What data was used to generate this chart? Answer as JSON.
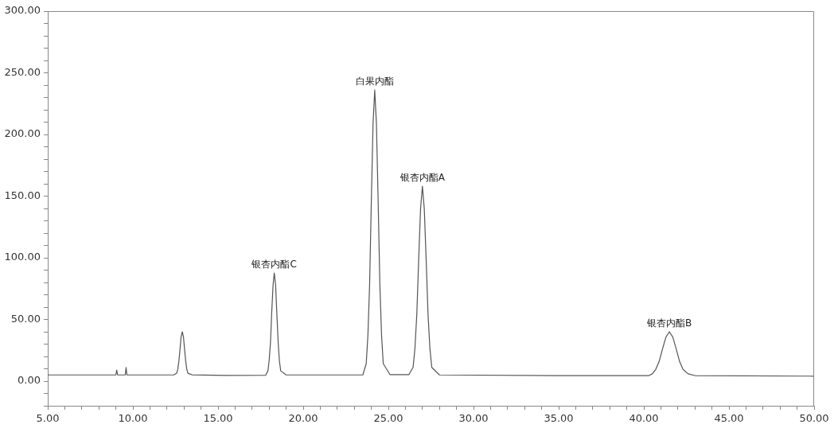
{
  "chart_data": {
    "type": "line",
    "grid": false,
    "marker": "none",
    "line_style": "solid",
    "xlim": [
      5,
      50
    ],
    "ylim": [
      -20,
      300
    ],
    "xticks": [
      {
        "value": 5,
        "label": "5.00"
      },
      {
        "value": 6,
        "label": null
      },
      {
        "value": 7,
        "label": null
      },
      {
        "value": 8,
        "label": null
      },
      {
        "value": 9,
        "label": null
      },
      {
        "value": 10,
        "label": "10.00"
      },
      {
        "value": 11,
        "label": null
      },
      {
        "value": 12,
        "label": null
      },
      {
        "value": 13,
        "label": null
      },
      {
        "value": 14,
        "label": null
      },
      {
        "value": 15,
        "label": "15.00"
      },
      {
        "value": 16,
        "label": null
      },
      {
        "value": 17,
        "label": null
      },
      {
        "value": 18,
        "label": null
      },
      {
        "value": 19,
        "label": null
      },
      {
        "value": 20,
        "label": "20.00"
      },
      {
        "value": 21,
        "label": null
      },
      {
        "value": 22,
        "label": null
      },
      {
        "value": 23,
        "label": null
      },
      {
        "value": 24,
        "label": null
      },
      {
        "value": 25,
        "label": "25.00"
      },
      {
        "value": 26,
        "label": null
      },
      {
        "value": 27,
        "label": null
      },
      {
        "value": 28,
        "label": null
      },
      {
        "value": 29,
        "label": null
      },
      {
        "value": 30,
        "label": "30.00"
      },
      {
        "value": 31,
        "label": null
      },
      {
        "value": 32,
        "label": null
      },
      {
        "value": 33,
        "label": null
      },
      {
        "value": 34,
        "label": null
      },
      {
        "value": 35,
        "label": "35.00"
      },
      {
        "value": 36,
        "label": null
      },
      {
        "value": 37,
        "label": null
      },
      {
        "value": 38,
        "label": null
      },
      {
        "value": 39,
        "label": null
      },
      {
        "value": 40,
        "label": "40.00"
      },
      {
        "value": 41,
        "label": null
      },
      {
        "value": 42,
        "label": null
      },
      {
        "value": 43,
        "label": null
      },
      {
        "value": 44,
        "label": null
      },
      {
        "value": 45,
        "label": "45.00"
      },
      {
        "value": 46,
        "label": null
      },
      {
        "value": 47,
        "label": null
      },
      {
        "value": 48,
        "label": null
      },
      {
        "value": 49,
        "label": null
      },
      {
        "value": 50,
        "label": "50.00"
      }
    ],
    "yticks": [
      {
        "value": -20,
        "label": null
      },
      {
        "value": -10,
        "label": null
      },
      {
        "value": 0,
        "label": "0.00"
      },
      {
        "value": 10,
        "label": null
      },
      {
        "value": 20,
        "label": null
      },
      {
        "value": 30,
        "label": null
      },
      {
        "value": 40,
        "label": null
      },
      {
        "value": 50,
        "label": "50.00"
      },
      {
        "value": 60,
        "label": null
      },
      {
        "value": 70,
        "label": null
      },
      {
        "value": 80,
        "label": null
      },
      {
        "value": 90,
        "label": null
      },
      {
        "value": 100,
        "label": "100.00"
      },
      {
        "value": 110,
        "label": null
      },
      {
        "value": 120,
        "label": null
      },
      {
        "value": 130,
        "label": null
      },
      {
        "value": 140,
        "label": null
      },
      {
        "value": 150,
        "label": "150.00"
      },
      {
        "value": 160,
        "label": null
      },
      {
        "value": 170,
        "label": null
      },
      {
        "value": 180,
        "label": null
      },
      {
        "value": 190,
        "label": null
      },
      {
        "value": 200,
        "label": "200.00"
      },
      {
        "value": 210,
        "label": null
      },
      {
        "value": 220,
        "label": null
      },
      {
        "value": 230,
        "label": null
      },
      {
        "value": 240,
        "label": null
      },
      {
        "value": 250,
        "label": "250.00"
      },
      {
        "value": 260,
        "label": null
      },
      {
        "value": 270,
        "label": null
      },
      {
        "value": 280,
        "label": null
      },
      {
        "value": 290,
        "label": null
      },
      {
        "value": 300,
        "label": "300.00"
      }
    ],
    "series": [
      {
        "color": "#555555",
        "x": [
          5,
          9.0,
          9.05,
          9.1,
          9.55,
          9.6,
          9.65,
          12.4,
          12.57,
          12.64,
          12.7,
          12.77,
          12.83,
          12.9,
          12.97,
          13.03,
          13.1,
          13.16,
          13.23,
          13.5,
          15.5,
          17.8,
          17.93,
          18.0,
          18.08,
          18.15,
          18.23,
          18.3,
          18.38,
          18.45,
          18.53,
          18.6,
          18.68,
          19,
          23.5,
          23.7,
          23.8,
          23.9,
          24.0,
          24.1,
          24.2,
          24.3,
          24.4,
          24.5,
          24.6,
          24.7,
          25.1,
          26.2,
          26.45,
          26.56,
          26.67,
          26.78,
          26.89,
          27.0,
          27.11,
          27.22,
          27.33,
          27.44,
          27.55,
          28,
          35,
          40.3,
          40.5,
          40.7,
          40.9,
          41.1,
          41.3,
          41.5,
          41.7,
          41.9,
          42.1,
          42.3,
          42.6,
          43,
          50
        ],
        "values": [
          5,
          5,
          9,
          5,
          5,
          11,
          5,
          5,
          6.4,
          9.9,
          16.2,
          26.4,
          35.8,
          40,
          35.8,
          26.4,
          16.2,
          9.9,
          6.4,
          5,
          4.6,
          4.8,
          8.3,
          16.6,
          31.5,
          55.4,
          77.8,
          87.7,
          77.8,
          55.4,
          31.5,
          16.6,
          8.3,
          5,
          5,
          14.2,
          37.3,
          78.9,
          145.9,
          208.3,
          236,
          208.3,
          145.9,
          78.9,
          37.3,
          14.2,
          5.2,
          5.2,
          11.1,
          26.4,
          54,
          98.3,
          139.6,
          158,
          139.6,
          98.3,
          54,
          26.4,
          11.1,
          5,
          4.5,
          4.5,
          5.9,
          9.5,
          15.9,
          26.2,
          35.7,
          40,
          35.7,
          26.2,
          15.9,
          9.5,
          5.9,
          4.5,
          4
        ]
      }
    ],
    "annotations": [
      {
        "text": "银杏内酯C",
        "x": 18.3,
        "y": 87.7
      },
      {
        "text": "白果内酯",
        "x": 24.2,
        "y": 236
      },
      {
        "text": "银杏内酯A",
        "x": 27.0,
        "y": 158
      },
      {
        "text": "银杏内酯B",
        "x": 41.5,
        "y": 40
      }
    ]
  }
}
